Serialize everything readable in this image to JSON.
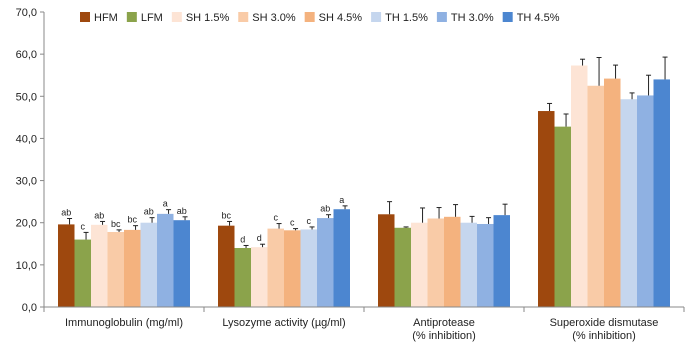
{
  "chart_data": {
    "type": "bar",
    "title": "",
    "xlabel": "",
    "ylabel": "",
    "ylim": [
      0,
      70
    ],
    "yticks": [
      "0,0",
      "10,0",
      "20,0",
      "30,0",
      "40,0",
      "50,0",
      "60,0",
      "70,0"
    ],
    "grid": false,
    "legend_position": "top",
    "categories": [
      [
        "Immunoglobulin (mg/ml)"
      ],
      [
        "Lysozyme activity (µg/ml)"
      ],
      [
        "Antiprotease",
        "(% inhibition)"
      ],
      [
        "Superoxide dismutase",
        "(% inhibition)"
      ]
    ],
    "series": [
      {
        "name": "HFM",
        "color": "#9E480E",
        "values": [
          19.6,
          19.3,
          22.0,
          46.5
        ],
        "errors": [
          1.4,
          1.0,
          3.0,
          1.8
        ],
        "labels": [
          "ab",
          "bc",
          "",
          ""
        ]
      },
      {
        "name": "LFM",
        "color": "#8BA34B",
        "values": [
          16.0,
          14.0,
          18.8,
          42.8
        ],
        "errors": [
          1.7,
          0.6,
          0.2,
          3.0
        ],
        "labels": [
          "c",
          "d",
          "",
          ""
        ]
      },
      {
        "name": "SH 1.5%",
        "color": "#FDE4D5",
        "values": [
          19.5,
          14.2,
          20.0,
          57.3
        ],
        "errors": [
          0.8,
          0.7,
          3.5,
          1.5
        ],
        "labels": [
          "ab",
          "d",
          "",
          ""
        ]
      },
      {
        "name": "SH 3.0%",
        "color": "#F9CBA7",
        "values": [
          17.8,
          18.6,
          21.0,
          52.5
        ],
        "errors": [
          0.5,
          1.2,
          2.6,
          6.7
        ],
        "labels": [
          "bc",
          "c",
          "",
          ""
        ]
      },
      {
        "name": "SH 4.5%",
        "color": "#F4B27E",
        "values": [
          18.3,
          18.2,
          21.4,
          54.2
        ],
        "errors": [
          1.0,
          0.4,
          2.9,
          3.2
        ],
        "labels": [
          "bc",
          "c",
          "",
          ""
        ]
      },
      {
        "name": "TH 1.5%",
        "color": "#C5D6EE",
        "values": [
          20.0,
          18.4,
          20.0,
          49.3
        ],
        "errors": [
          1.2,
          0.6,
          1.5,
          1.5
        ],
        "labels": [
          "ab",
          "c",
          "",
          ""
        ]
      },
      {
        "name": "TH 3.0%",
        "color": "#8FB1E2",
        "values": [
          22.1,
          21.1,
          19.7,
          50.2
        ],
        "errors": [
          1.0,
          0.8,
          1.5,
          4.8
        ],
        "labels": [
          "a",
          "ab",
          "",
          ""
        ]
      },
      {
        "name": "TH 4.5%",
        "color": "#4C86D0",
        "values": [
          20.6,
          23.2,
          21.8,
          54.0
        ],
        "errors": [
          0.8,
          0.8,
          2.6,
          5.3
        ],
        "labels": [
          "ab",
          "a",
          "",
          ""
        ]
      }
    ]
  }
}
